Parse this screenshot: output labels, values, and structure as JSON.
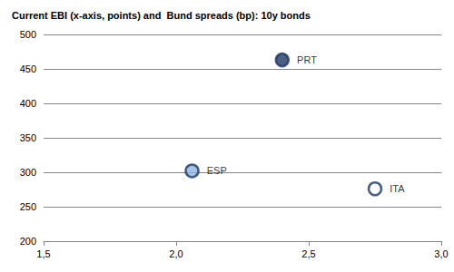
{
  "chart_data": {
    "type": "scatter",
    "title": "Current EBI (x-axis, points) and  Bund spreads (bp): 10y bonds",
    "x": [
      2.4,
      2.06,
      2.75
    ],
    "values": [
      463,
      302,
      276
    ],
    "point_labels": [
      "PRT",
      "ESP",
      "ITA"
    ],
    "colors": [
      "#1f3864",
      "#8eb4e3",
      "#ffffff"
    ],
    "xlim": [
      1.5,
      3.0
    ],
    "xticks": [
      {
        "value": 1.5,
        "label": "1,5"
      },
      {
        "value": 2.0,
        "label": "2,0"
      },
      {
        "value": 2.5,
        "label": "2,5"
      },
      {
        "value": 3.0,
        "label": "3,0"
      }
    ],
    "ylim": [
      200,
      500
    ],
    "yticks": [
      200,
      250,
      300,
      350,
      400,
      450,
      500
    ],
    "grid": true
  }
}
